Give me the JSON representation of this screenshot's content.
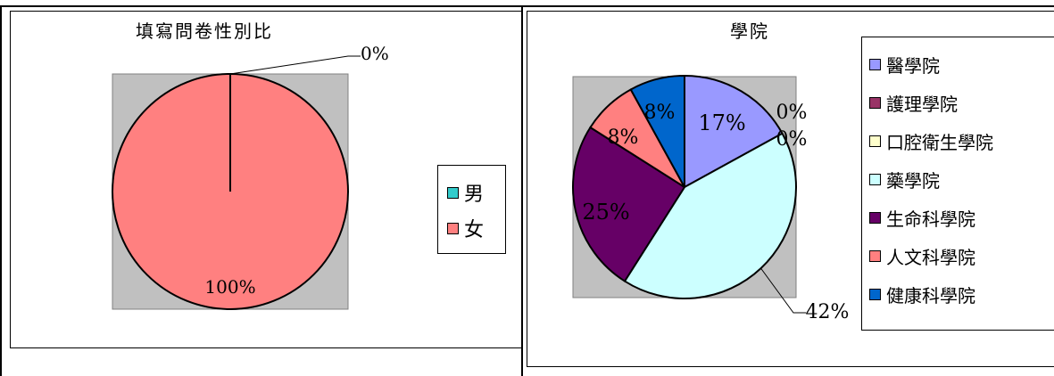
{
  "charts": {
    "gender": {
      "colors": {
        "男": "#33CCCC",
        "女": "#FF8080"
      }
    },
    "college": {
      "colors": [
        "#9999FF",
        "#993366",
        "#FFFFCC",
        "#CCFFFF",
        "#660066",
        "#FF8080",
        "#0066CC"
      ]
    }
  },
  "chart_data": [
    {
      "type": "pie",
      "title": "填寫問卷性別比",
      "categories": [
        "男",
        "女"
      ],
      "values": [
        0,
        100
      ],
      "data_labels": [
        "0%",
        "100%"
      ],
      "legend": "right",
      "plot_area_background": "#C0C0C0"
    },
    {
      "type": "pie",
      "title": "學院",
      "categories": [
        "醫學院",
        "護理學院",
        "口腔衛生學院",
        "藥學院",
        "生命科學院",
        "人文科學院",
        "健康科學院"
      ],
      "values": [
        17,
        0,
        0,
        42,
        25,
        8,
        8
      ],
      "data_labels": [
        "17%",
        "0%",
        "0%",
        "42%",
        "25%",
        "8%",
        "8%"
      ],
      "legend": "right",
      "plot_area_background": "#C0C0C0"
    }
  ]
}
